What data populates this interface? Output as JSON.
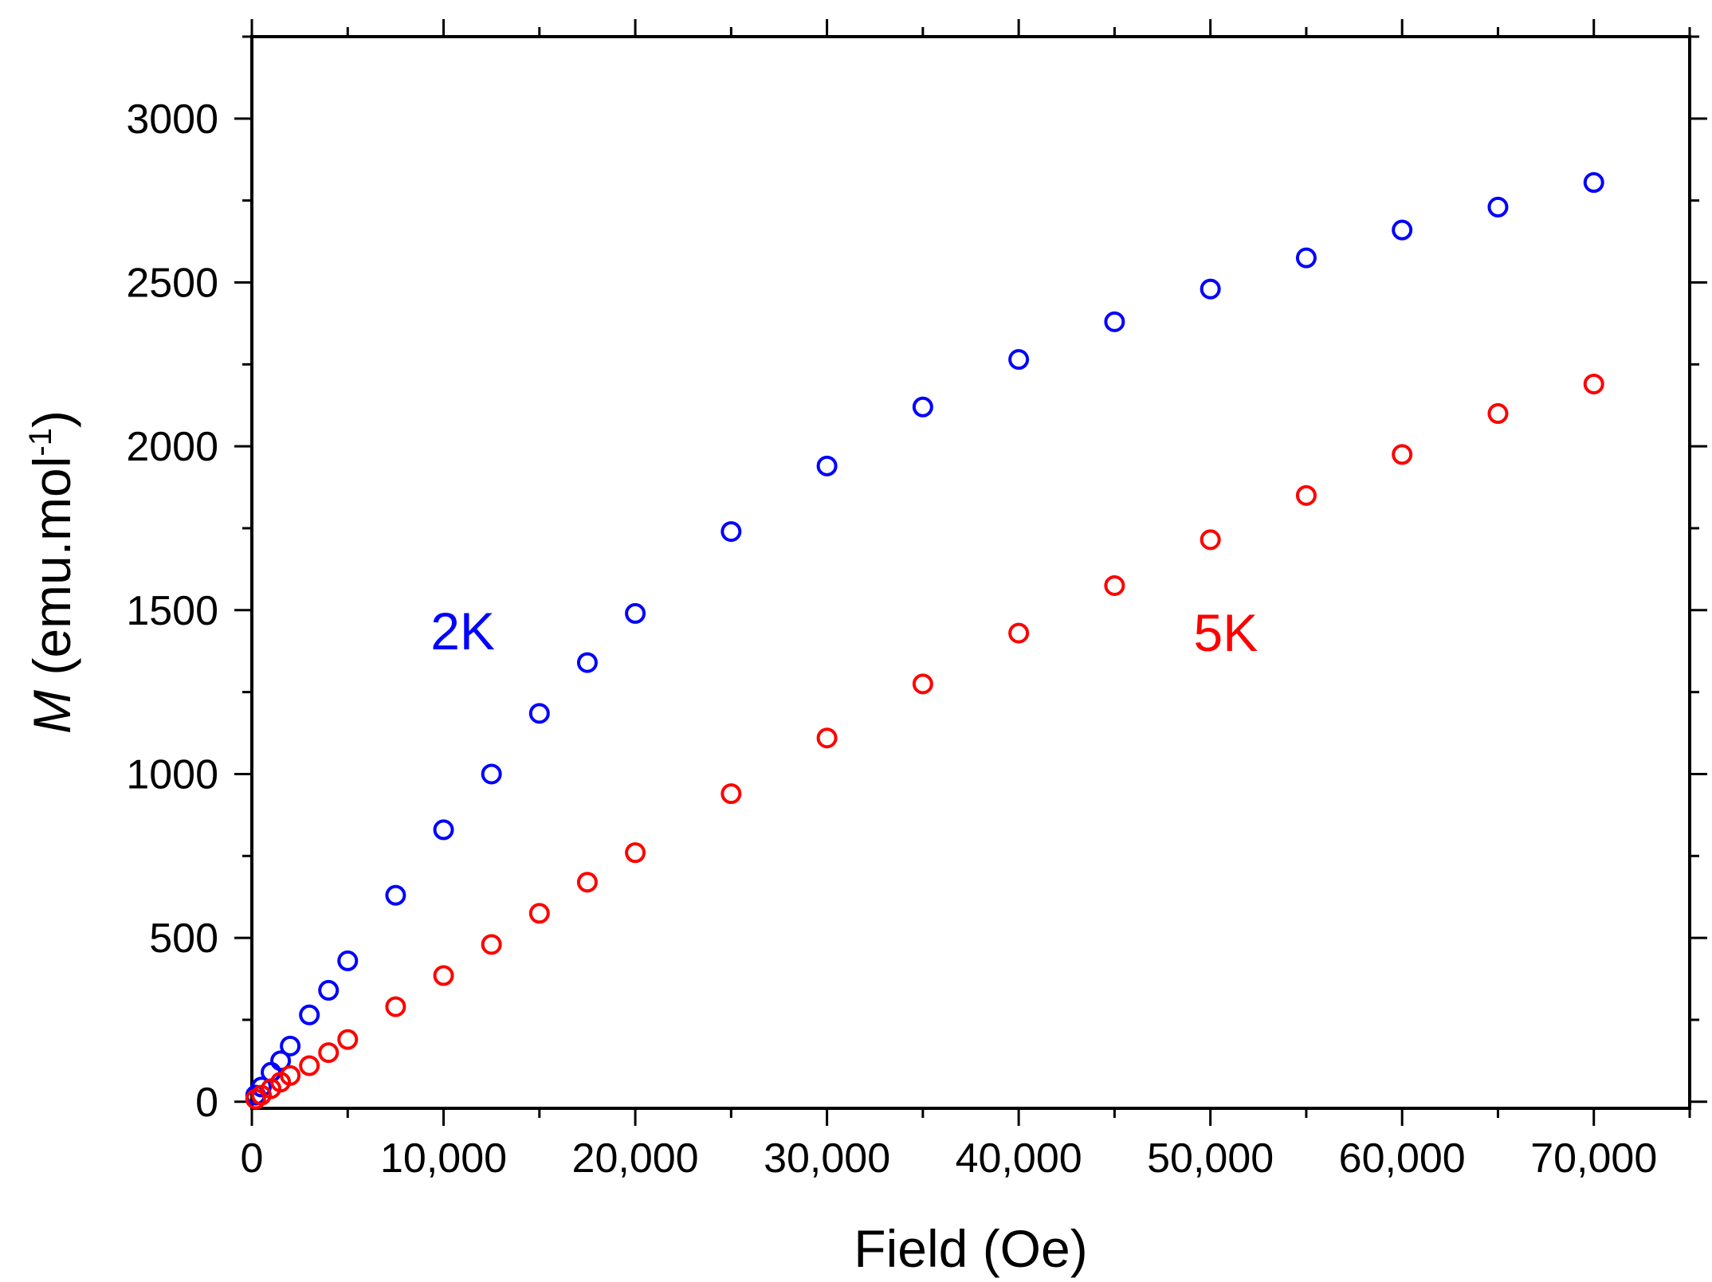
{
  "chart_data": {
    "type": "scatter",
    "title": "",
    "xlabel": "Field (Oe)",
    "ylabel_italic": "M",
    "ylabel_rest": " (emu.mol",
    "ylabel_sup": "-1",
    "ylabel_close": ")",
    "xlim": [
      0,
      75000
    ],
    "ylim": [
      -20,
      3250
    ],
    "xticks": [
      0,
      10000,
      20000,
      30000,
      40000,
      50000,
      60000,
      70000
    ],
    "xtick_labels": [
      "0",
      "10,000",
      "20,000",
      "30,000",
      "40,000",
      "50,000",
      "60,000",
      "70,000"
    ],
    "yticks": [
      0,
      500,
      1000,
      1500,
      2000,
      2500,
      3000
    ],
    "ytick_labels": [
      "0",
      "500",
      "1000",
      "1500",
      "2000",
      "2500",
      "3000"
    ],
    "grid": false,
    "series": [
      {
        "name": "2K",
        "color": "#0000ff",
        "label_at": [
          11000,
          1380
        ],
        "x": [
          200,
          500,
          1000,
          1500,
          2000,
          3000,
          4000,
          5000,
          7500,
          10000,
          12500,
          15000,
          17500,
          20000,
          25000,
          30000,
          35000,
          40000,
          45000,
          50000,
          55000,
          60000,
          65000,
          70000
        ],
        "y": [
          20,
          45,
          90,
          125,
          170,
          265,
          340,
          430,
          630,
          830,
          1000,
          1185,
          1340,
          1490,
          1740,
          1940,
          2120,
          2265,
          2380,
          2480,
          2575,
          2660,
          2730,
          2805
        ]
      },
      {
        "name": "5K",
        "color": "#ff0000",
        "label_at": [
          50800,
          1375
        ],
        "x": [
          200,
          500,
          1000,
          1500,
          2000,
          3000,
          4000,
          5000,
          7500,
          10000,
          12500,
          15000,
          17500,
          20000,
          25000,
          30000,
          35000,
          40000,
          45000,
          50000,
          55000,
          60000,
          65000,
          70000
        ],
        "y": [
          8,
          20,
          40,
          60,
          80,
          110,
          150,
          190,
          290,
          385,
          480,
          575,
          670,
          760,
          940,
          1110,
          1275,
          1430,
          1575,
          1715,
          1850,
          1975,
          2100,
          2190
        ]
      }
    ]
  }
}
